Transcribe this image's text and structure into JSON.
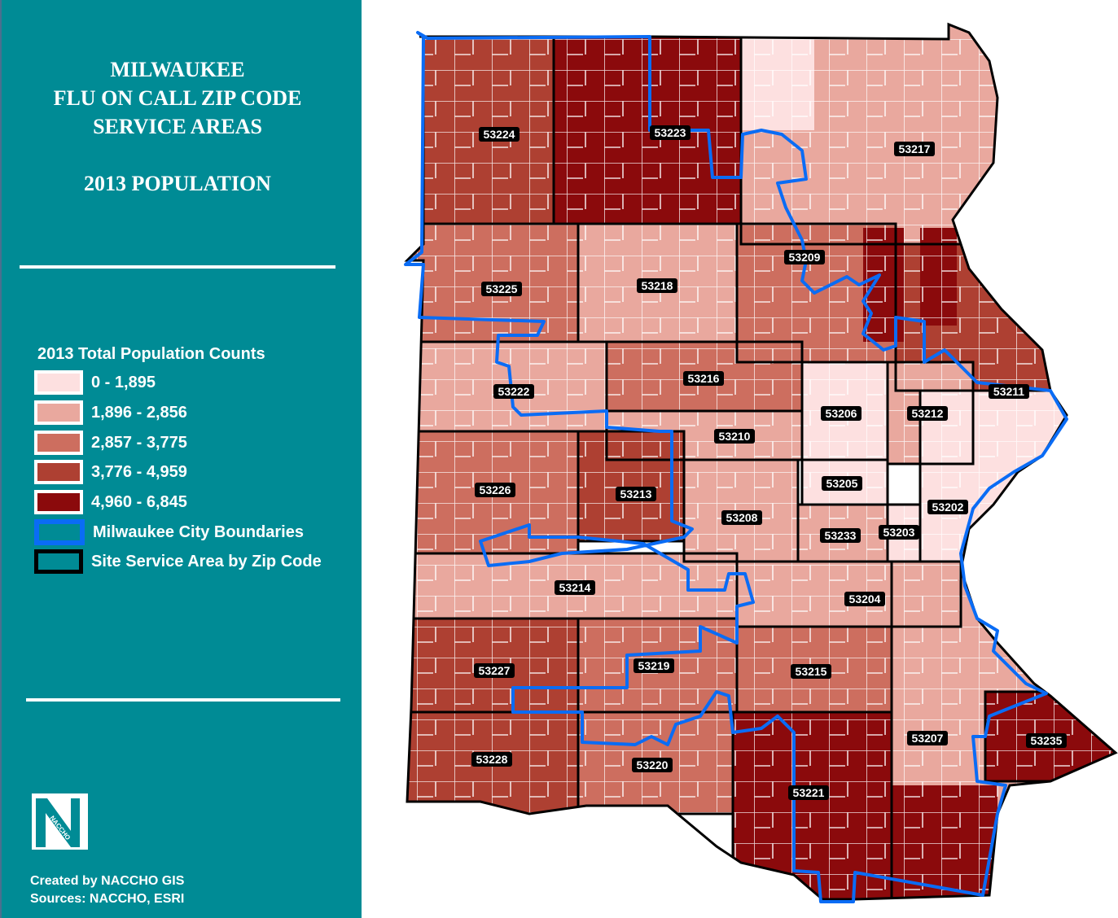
{
  "title": {
    "lines": [
      "MILWAUKEE",
      "FLU ON CALL ZIP CODE",
      "SERVICE AREAS"
    ],
    "subtitle": "2013 POPULATION"
  },
  "legend": {
    "title": "2013 Total Population Counts",
    "classes": [
      {
        "label": "0 - 1,895",
        "color": "#fde0e0"
      },
      {
        "label": "1,896 - 2,856",
        "color": "#e9a89e"
      },
      {
        "label": "2,857 - 3,775",
        "color": "#cd6e5f"
      },
      {
        "label": "3,776 - 4,959",
        "color": "#ae4032"
      },
      {
        "label": "4,960 - 6,845",
        "color": "#8b0a0c"
      }
    ],
    "city_boundary": {
      "label": "Milwaukee City Boundaries",
      "color": "#0a6cf5"
    },
    "zip_boundary": {
      "label": "Site Service Area by Zip Code",
      "color": "#000000"
    }
  },
  "logo_text": "NACCHO",
  "credits": {
    "created_by": "Created by NACCHO GIS",
    "sources": "Sources: NACCHO, ESRI"
  },
  "zip_areas": [
    {
      "zip": "53224",
      "class": 3
    },
    {
      "zip": "53223",
      "class": 4
    },
    {
      "zip": "53217",
      "class": 1
    },
    {
      "zip": "53225",
      "class": 2
    },
    {
      "zip": "53218",
      "class": 1
    },
    {
      "zip": "53209",
      "class": 2
    },
    {
      "zip": "53211",
      "class": 3
    },
    {
      "zip": "53222",
      "class": 1
    },
    {
      "zip": "53216",
      "class": 2
    },
    {
      "zip": "53210",
      "class": 1
    },
    {
      "zip": "53206",
      "class": 0
    },
    {
      "zip": "53212",
      "class": 1
    },
    {
      "zip": "53226",
      "class": 2
    },
    {
      "zip": "53213",
      "class": 3
    },
    {
      "zip": "53208",
      "class": 1
    },
    {
      "zip": "53205",
      "class": 0
    },
    {
      "zip": "53233",
      "class": 1
    },
    {
      "zip": "53203",
      "class": 0
    },
    {
      "zip": "53202",
      "class": 0
    },
    {
      "zip": "53214",
      "class": 1
    },
    {
      "zip": "53204",
      "class": 1
    },
    {
      "zip": "53227",
      "class": 3
    },
    {
      "zip": "53219",
      "class": 2
    },
    {
      "zip": "53215",
      "class": 2
    },
    {
      "zip": "53207",
      "class": 1
    },
    {
      "zip": "53235",
      "class": 4
    },
    {
      "zip": "53228",
      "class": 3
    },
    {
      "zip": "53220",
      "class": 2
    },
    {
      "zip": "53221",
      "class": 4
    }
  ]
}
